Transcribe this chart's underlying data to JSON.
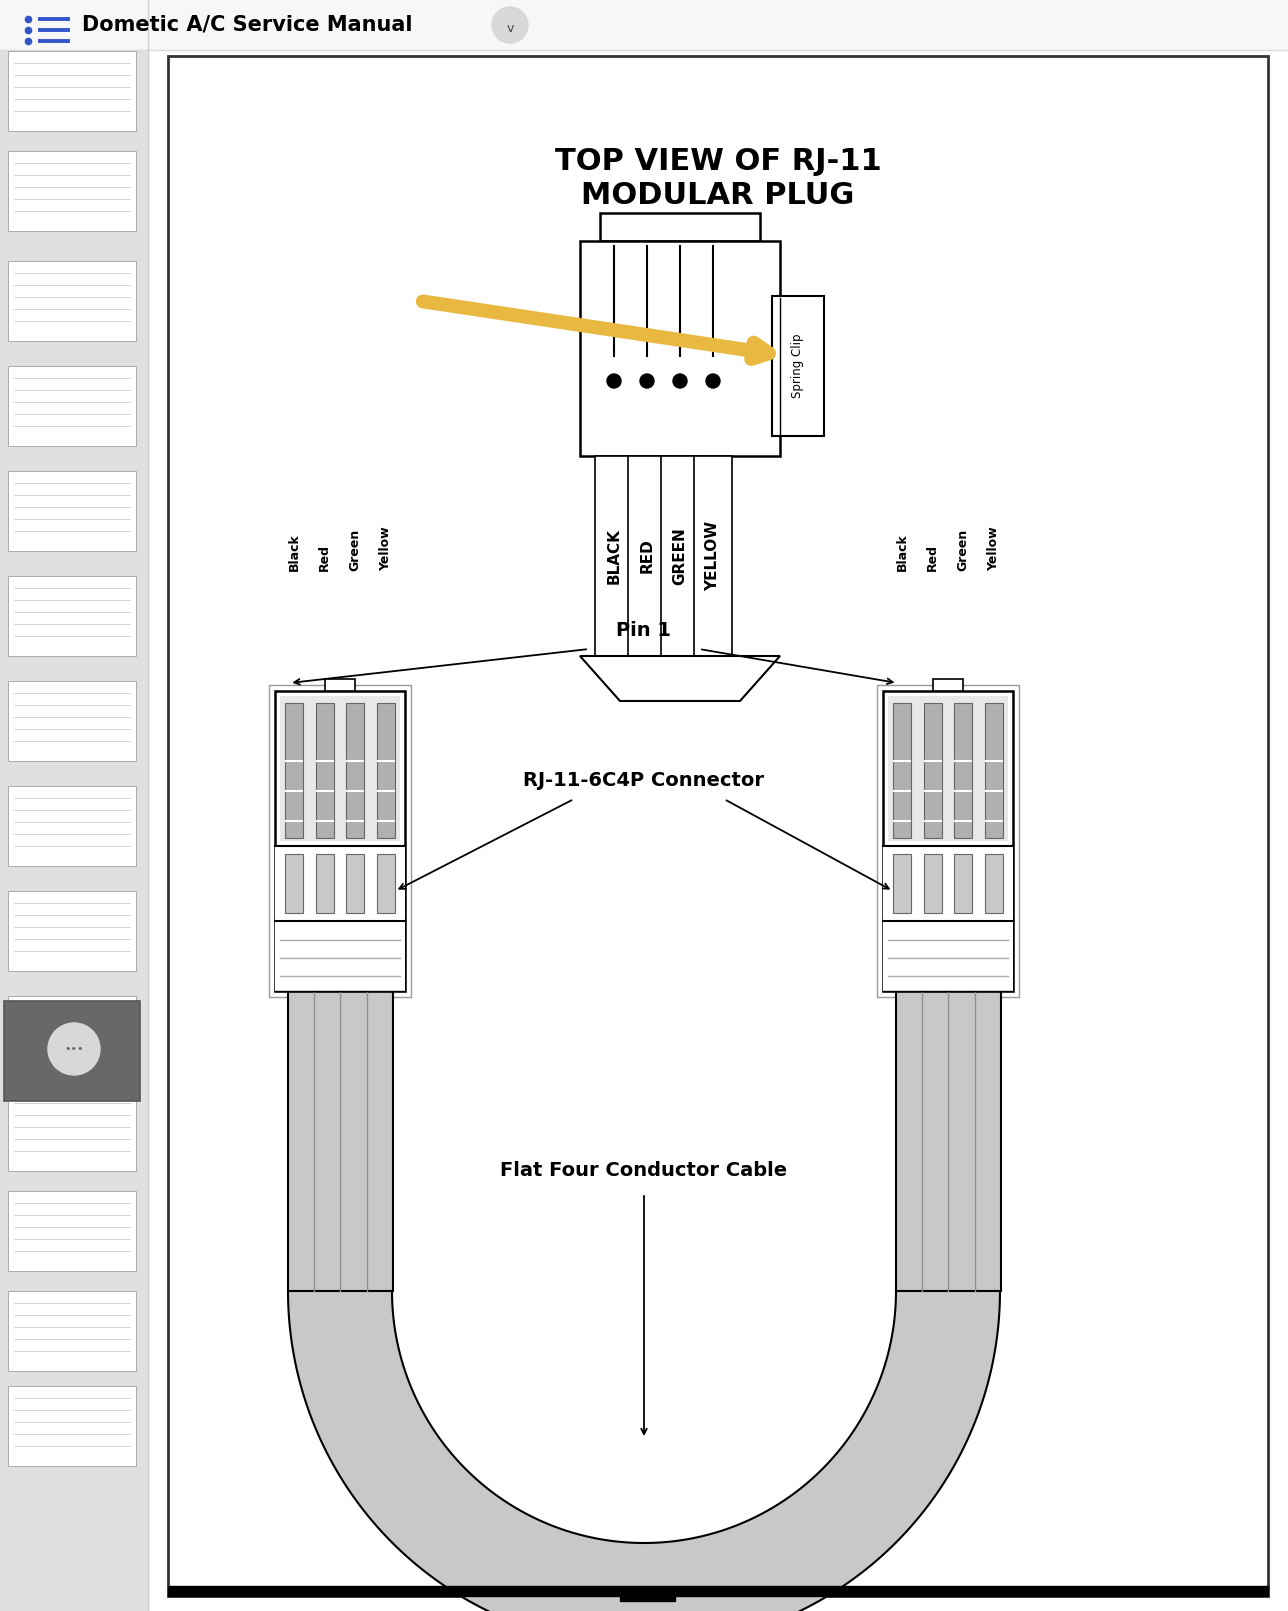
{
  "title": "Dometic A/C Service Manual",
  "bg_color": "#ffffff",
  "top_title_line1": "TOP VIEW OF RJ-11",
  "top_title_line2": "MODULAR PLUG",
  "wire_labels_top": [
    "BLACK",
    "RED",
    "GREEN",
    "YELLOW"
  ],
  "wire_labels_bottom_left": [
    "Black",
    "Red",
    "Green",
    "Yellow"
  ],
  "wire_labels_bottom_right": [
    "Black",
    "Red",
    "Green",
    "Yellow"
  ],
  "spring_clip_label": "Spring Clip",
  "pin1_label": "Pin 1",
  "connector_label": "RJ-11-6C4P Connector",
  "cable_label": "Flat Four Conductor Cable",
  "arrow_color": "#e8b840",
  "gray_cable": "#c8c8c8",
  "dark_gray": "#888888",
  "light_gray": "#d8d8d8"
}
